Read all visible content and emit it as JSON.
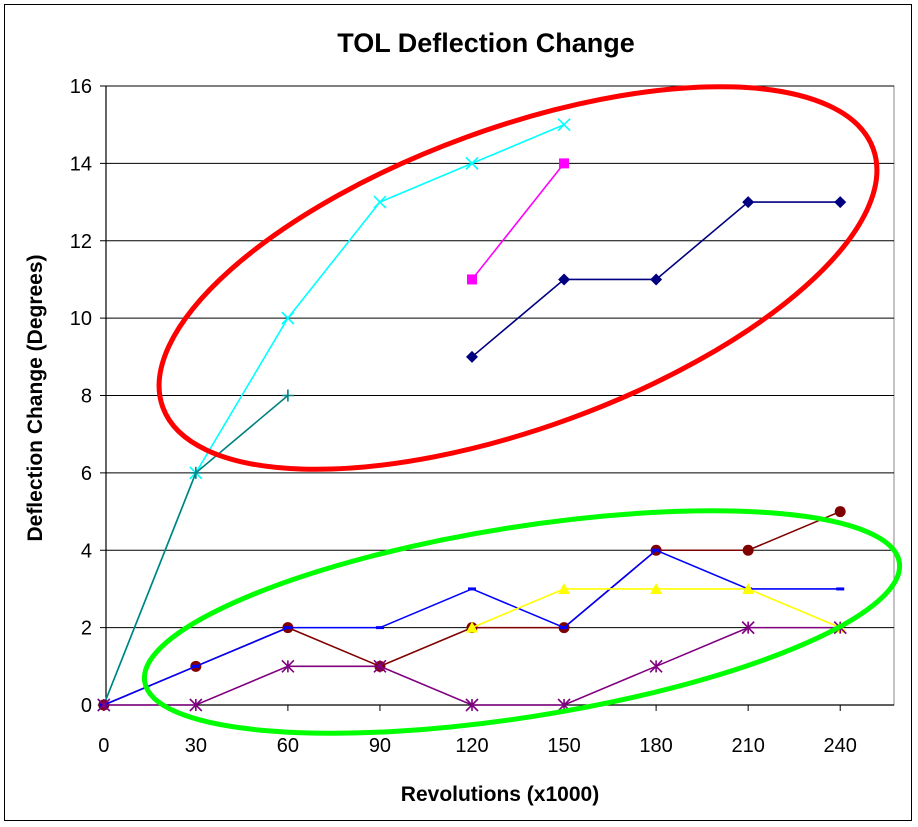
{
  "chart_data": {
    "type": "line",
    "title": "TOL Deflection Change",
    "xlabel": "Revolutions (x1000)",
    "ylabel": "Deflection Change (Degrees)",
    "x": [
      0,
      30,
      60,
      90,
      120,
      150,
      180,
      210,
      240
    ],
    "x_tick_labels": [
      "0",
      "30",
      "60",
      "90",
      "120",
      "150",
      "180",
      "210",
      "240"
    ],
    "y_tick_labels": [
      "0",
      "2",
      "4",
      "6",
      "8",
      "10",
      "12",
      "14",
      "16"
    ],
    "ylim": [
      0,
      16
    ],
    "grid": "horizontal",
    "legend": "none",
    "series": [
      {
        "color": "#00FFFF",
        "marker": "x",
        "values": [
          0,
          6,
          10,
          13,
          14,
          15,
          null,
          null,
          null
        ]
      },
      {
        "color": "#008080",
        "marker": "plus",
        "values": [
          0,
          6,
          8,
          null,
          null,
          null,
          null,
          null,
          null
        ]
      },
      {
        "color": "#FF00FF",
        "marker": "square",
        "values": [
          null,
          null,
          null,
          null,
          11,
          14,
          null,
          null,
          null
        ]
      },
      {
        "color": "#000080",
        "marker": "diamond",
        "values": [
          null,
          null,
          null,
          null,
          9,
          11,
          11,
          13,
          13
        ]
      },
      {
        "color": "#800000",
        "marker": "circle",
        "values": [
          0,
          1,
          2,
          1,
          2,
          2,
          4,
          4,
          5
        ]
      },
      {
        "color": "#0000FF",
        "marker": "dash",
        "values": [
          0,
          1,
          2,
          2,
          3,
          2,
          4,
          3,
          3
        ]
      },
      {
        "color": "#FFFF00",
        "marker": "triangle",
        "values": [
          null,
          null,
          null,
          null,
          2,
          3,
          3,
          3,
          2
        ]
      },
      {
        "color": "#800080",
        "marker": "asterisk",
        "values": [
          0,
          0,
          1,
          1,
          0,
          0,
          1,
          2,
          2
        ]
      }
    ],
    "annotations": [
      {
        "shape": "ellipse",
        "color": "#FF0000"
      },
      {
        "shape": "ellipse",
        "color": "#00FF00"
      }
    ]
  }
}
